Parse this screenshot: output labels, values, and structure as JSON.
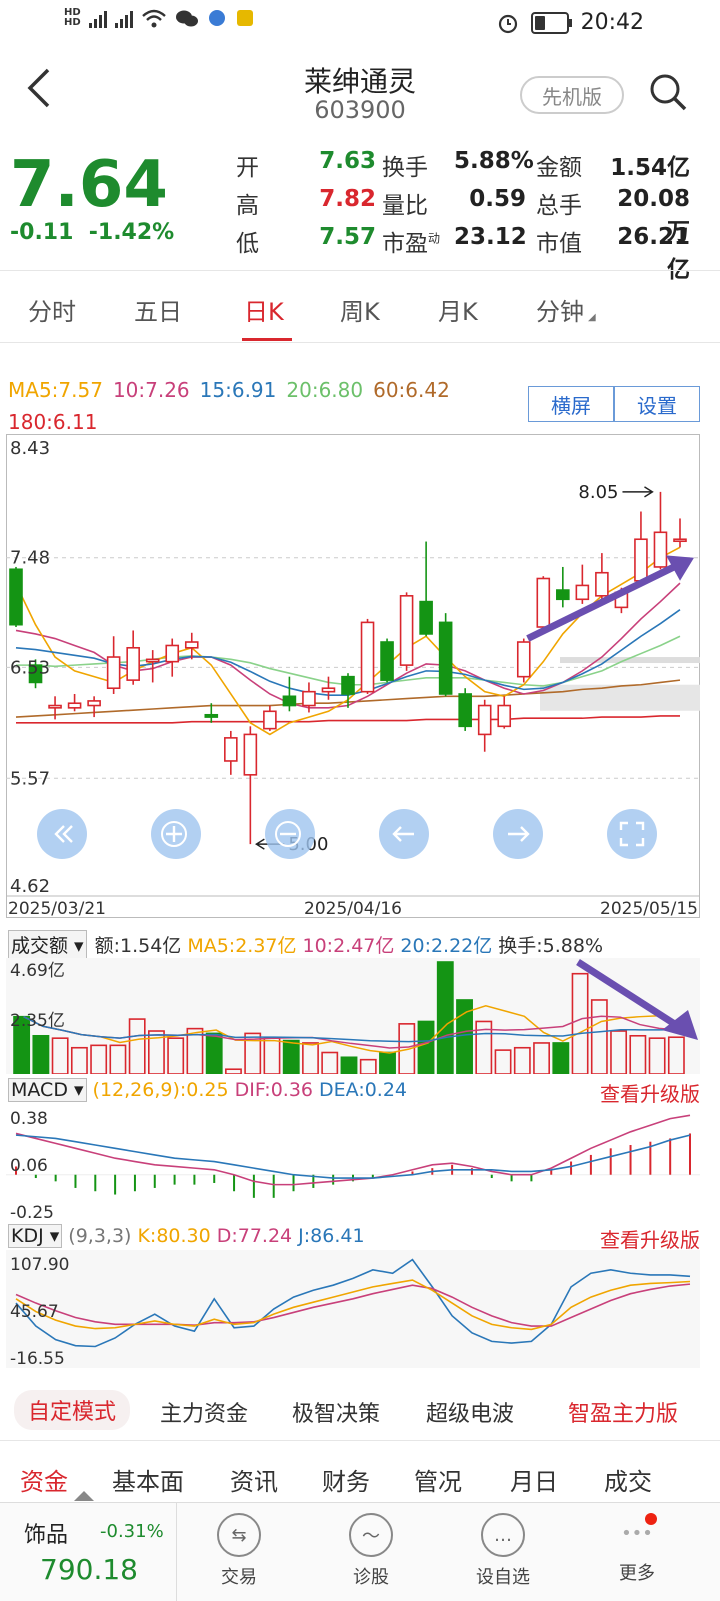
{
  "status": {
    "left_icons": [
      "hd-icon",
      "5g-signal-icon",
      "4g-signal-icon",
      "wifi-icon",
      "wechat-icon",
      "app-icon",
      "wallet-icon"
    ],
    "time": "20:42"
  },
  "header": {
    "stock_name": "莱绅通灵",
    "stock_code": "603900",
    "mode_button": "先机版"
  },
  "quote": {
    "price": "7.64",
    "change": "-0.11",
    "change_pct": "-1.42%",
    "rows": [
      [
        {
          "label": "开",
          "value": "7.63",
          "color": "green"
        },
        {
          "label": "换手",
          "value": "5.88%",
          "color": "dark"
        },
        {
          "label": "金额",
          "value": "1.54亿",
          "color": "dark"
        }
      ],
      [
        {
          "label": "高",
          "value": "7.82",
          "color": "red"
        },
        {
          "label": "量比",
          "value": "0.59",
          "color": "dark"
        },
        {
          "label": "总手",
          "value": "20.08万",
          "color": "dark"
        }
      ],
      [
        {
          "label": "低",
          "value": "7.57",
          "color": "green"
        },
        {
          "label": "市盈动",
          "value": "23.12",
          "color": "dark"
        },
        {
          "label": "市值",
          "value": "26.21亿",
          "color": "dark"
        }
      ]
    ]
  },
  "tabs": [
    "分时",
    "五日",
    "日K",
    "周K",
    "月K",
    "分钟"
  ],
  "active_tab": 2,
  "kline": {
    "ma_legend": [
      {
        "text": "MA5:7.57",
        "color": "#f0a500"
      },
      {
        "text": "10:7.26",
        "color": "#c8407a"
      },
      {
        "text": "15:6.91",
        "color": "#2a77b8"
      },
      {
        "text": "20:6.80",
        "color": "#6cc06a"
      },
      {
        "text": "60:6.42",
        "color": "#b06a2a"
      },
      {
        "text": "180:6.11",
        "color": "#d9272e"
      }
    ],
    "btn_landscape": "横屏",
    "btn_settings": "设置",
    "y_labels": [
      "8.43",
      "7.48",
      "6.53",
      "5.57",
      "4.62"
    ],
    "x_labels": [
      "2025/03/21",
      "2025/04/16",
      "2025/05/15"
    ],
    "high_marker": "8.05",
    "low_marker": "5.00",
    "colors": {
      "up": "#d9272e",
      "down": "#149414"
    }
  },
  "chart_data": {
    "type": "candlestick",
    "ylim": [
      4.62,
      8.43
    ],
    "x_range": [
      "2025/03/21",
      "2025/05/15"
    ],
    "candles": [
      {
        "o": 7.38,
        "c": 6.9,
        "h": 7.4,
        "l": 6.88
      },
      {
        "o": 6.55,
        "c": 6.4,
        "h": 6.6,
        "l": 6.35
      },
      {
        "o": 6.18,
        "c": 6.2,
        "h": 6.28,
        "l": 6.08
      },
      {
        "o": 6.18,
        "c": 6.22,
        "h": 6.3,
        "l": 6.15
      },
      {
        "o": 6.2,
        "c": 6.24,
        "h": 6.28,
        "l": 6.1
      },
      {
        "o": 6.35,
        "c": 6.62,
        "h": 6.8,
        "l": 6.3
      },
      {
        "o": 6.42,
        "c": 6.7,
        "h": 6.85,
        "l": 6.38
      },
      {
        "o": 6.58,
        "c": 6.6,
        "h": 6.68,
        "l": 6.4
      },
      {
        "o": 6.58,
        "c": 6.72,
        "h": 6.78,
        "l": 6.45
      },
      {
        "o": 6.7,
        "c": 6.75,
        "h": 6.83,
        "l": 6.6
      },
      {
        "o": 6.12,
        "c": 6.1,
        "h": 6.22,
        "l": 6.05
      },
      {
        "o": 5.72,
        "c": 5.92,
        "h": 5.98,
        "l": 5.6
      },
      {
        "o": 5.6,
        "c": 5.95,
        "h": 6.02,
        "l": 5.0
      },
      {
        "o": 6.0,
        "c": 6.15,
        "h": 6.2,
        "l": 5.98
      },
      {
        "o": 6.28,
        "c": 6.2,
        "h": 6.45,
        "l": 6.15
      },
      {
        "o": 6.2,
        "c": 6.32,
        "h": 6.4,
        "l": 6.14
      },
      {
        "o": 6.32,
        "c": 6.35,
        "h": 6.45,
        "l": 6.25
      },
      {
        "o": 6.45,
        "c": 6.3,
        "h": 6.48,
        "l": 6.18
      },
      {
        "o": 6.32,
        "c": 6.92,
        "h": 6.95,
        "l": 6.3
      },
      {
        "o": 6.75,
        "c": 6.42,
        "h": 6.78,
        "l": 6.4
      },
      {
        "o": 6.55,
        "c": 7.15,
        "h": 7.18,
        "l": 6.5
      },
      {
        "o": 7.1,
        "c": 6.82,
        "h": 7.62,
        "l": 6.8
      },
      {
        "o": 6.92,
        "c": 6.3,
        "h": 7.0,
        "l": 6.28
      },
      {
        "o": 6.3,
        "c": 6.02,
        "h": 6.35,
        "l": 5.98
      },
      {
        "o": 5.95,
        "c": 6.2,
        "h": 6.25,
        "l": 5.8
      },
      {
        "o": 6.02,
        "c": 6.2,
        "h": 6.28,
        "l": 6.0
      },
      {
        "o": 6.45,
        "c": 6.75,
        "h": 6.78,
        "l": 6.4
      },
      {
        "o": 6.88,
        "c": 7.3,
        "h": 7.32,
        "l": 6.85
      },
      {
        "o": 7.2,
        "c": 7.12,
        "h": 7.4,
        "l": 7.05
      },
      {
        "o": 7.12,
        "c": 7.24,
        "h": 7.42,
        "l": 7.08
      },
      {
        "o": 7.15,
        "c": 7.35,
        "h": 7.52,
        "l": 7.1
      },
      {
        "o": 7.05,
        "c": 7.18,
        "h": 7.22,
        "l": 7.0
      },
      {
        "o": 7.28,
        "c": 7.64,
        "h": 7.88,
        "l": 7.25
      },
      {
        "o": 7.4,
        "c": 7.7,
        "h": 8.05,
        "l": 7.38
      },
      {
        "o": 7.63,
        "c": 7.64,
        "h": 7.82,
        "l": 7.57
      }
    ],
    "ma5": [
      7.25,
      6.9,
      6.62,
      6.5,
      6.45,
      6.4,
      6.5,
      6.58,
      6.65,
      6.7,
      6.55,
      6.3,
      6.05,
      5.95,
      6.05,
      6.1,
      6.15,
      6.25,
      6.4,
      6.55,
      6.7,
      6.8,
      6.62,
      6.45,
      6.32,
      6.28,
      6.38,
      6.58,
      6.82,
      7.0,
      7.15,
      7.25,
      7.35,
      7.48,
      7.57
    ],
    "ma10": [
      6.85,
      6.82,
      6.78,
      6.72,
      6.66,
      6.55,
      6.5,
      6.52,
      6.58,
      6.62,
      6.62,
      6.55,
      6.42,
      6.3,
      6.22,
      6.18,
      6.18,
      6.2,
      6.28,
      6.38,
      6.48,
      6.56,
      6.55,
      6.5,
      6.42,
      6.35,
      6.3,
      6.33,
      6.4,
      6.5,
      6.62,
      6.78,
      6.95,
      7.1,
      7.26
    ],
    "ma20": [
      6.55,
      6.55,
      6.54,
      6.55,
      6.56,
      6.57,
      6.58,
      6.6,
      6.62,
      6.63,
      6.62,
      6.6,
      6.57,
      6.52,
      6.48,
      6.44,
      6.4,
      6.38,
      6.38,
      6.4,
      6.42,
      6.44,
      6.44,
      6.44,
      6.42,
      6.4,
      6.38,
      6.37,
      6.4,
      6.45,
      6.5,
      6.58,
      6.65,
      6.72,
      6.8
    ],
    "ma60": [
      6.1,
      6.11,
      6.12,
      6.13,
      6.14,
      6.15,
      6.16,
      6.17,
      6.18,
      6.19,
      6.2,
      6.2,
      6.2,
      6.2,
      6.21,
      6.22,
      6.22,
      6.23,
      6.24,
      6.25,
      6.26,
      6.27,
      6.28,
      6.28,
      6.28,
      6.29,
      6.3,
      6.31,
      6.32,
      6.34,
      6.35,
      6.37,
      6.38,
      6.4,
      6.42
    ],
    "ma180": [
      6.05,
      6.05,
      6.05,
      6.05,
      6.05,
      6.05,
      6.05,
      6.05,
      6.05,
      6.06,
      6.06,
      6.06,
      6.06,
      6.06,
      6.06,
      6.06,
      6.07,
      6.07,
      6.07,
      6.07,
      6.07,
      6.08,
      6.08,
      6.08,
      6.08,
      6.08,
      6.09,
      6.09,
      6.09,
      6.09,
      6.1,
      6.1,
      6.1,
      6.11,
      6.11
    ]
  },
  "volume": {
    "selector": "成交额",
    "legend": [
      {
        "text": "额:1.54亿",
        "color": "#333"
      },
      {
        "text": "MA5:2.37亿",
        "color": "#f0a500"
      },
      {
        "text": "10:2.47亿",
        "color": "#c8407a"
      },
      {
        "text": "20:2.22亿",
        "color": "#2a77b8"
      },
      {
        "text": "换手:5.88%",
        "color": "#333"
      }
    ],
    "y_labels": [
      "4.69亿",
      "2.35亿"
    ],
    "ylim": [
      0,
      4.69
    ],
    "values": [
      2.4,
      1.6,
      1.5,
      1.1,
      1.2,
      1.2,
      2.3,
      1.8,
      1.5,
      1.9,
      1.7,
      0.2,
      1.7,
      1.5,
      1.4,
      1.3,
      0.9,
      0.7,
      0.6,
      0.9,
      2.1,
      2.2,
      4.69,
      3.1,
      2.2,
      1.0,
      1.1,
      1.3,
      1.3,
      4.2,
      3.1,
      1.8,
      1.6,
      1.5,
      1.54
    ]
  },
  "macd": {
    "selector": "MACD",
    "legend": [
      {
        "text": "(12,26,9):0.25",
        "color": "#f0a500"
      },
      {
        "text": "DIF:0.36",
        "color": "#c8407a"
      },
      {
        "text": "DEA:0.24",
        "color": "#2a77b8"
      }
    ],
    "upgrade": "查看升级版",
    "y_labels": [
      "0.38",
      "0.06",
      "-0.25"
    ],
    "ylim": [
      -0.25,
      0.38
    ],
    "hist": [
      0.05,
      -0.02,
      -0.04,
      -0.08,
      -0.1,
      -0.12,
      -0.1,
      -0.08,
      -0.06,
      -0.06,
      -0.05,
      -0.1,
      -0.14,
      -0.14,
      -0.1,
      -0.08,
      -0.06,
      -0.04,
      -0.02,
      0.0,
      0.02,
      0.04,
      0.06,
      0.04,
      -0.02,
      -0.04,
      -0.04,
      0.03,
      0.08,
      0.12,
      0.16,
      0.18,
      0.2,
      0.22,
      0.25
    ],
    "dif": [
      0.25,
      0.22,
      0.19,
      0.16,
      0.13,
      0.1,
      0.08,
      0.06,
      0.05,
      0.04,
      0.03,
      0.0,
      -0.04,
      -0.06,
      -0.06,
      -0.05,
      -0.04,
      -0.03,
      -0.02,
      0.0,
      0.03,
      0.06,
      0.07,
      0.05,
      0.02,
      0.0,
      0.0,
      0.04,
      0.1,
      0.16,
      0.21,
      0.26,
      0.3,
      0.34,
      0.36
    ],
    "dea": [
      0.24,
      0.23,
      0.22,
      0.2,
      0.18,
      0.16,
      0.14,
      0.12,
      0.1,
      0.09,
      0.08,
      0.06,
      0.04,
      0.02,
      0.0,
      -0.01,
      -0.02,
      -0.02,
      -0.02,
      -0.01,
      0.0,
      0.02,
      0.03,
      0.03,
      0.03,
      0.02,
      0.02,
      0.03,
      0.05,
      0.08,
      0.11,
      0.14,
      0.17,
      0.21,
      0.24
    ]
  },
  "kdj": {
    "selector": "KDJ",
    "legend": [
      {
        "text": "(9,3,3)",
        "color": "#777"
      },
      {
        "text": "K:80.30",
        "color": "#f0a500"
      },
      {
        "text": "D:77.24",
        "color": "#c8407a"
      },
      {
        "text": "J:86.41",
        "color": "#2a77b8"
      }
    ],
    "upgrade": "查看升级版",
    "y_labels": [
      "107.90",
      "45.67",
      "-16.55"
    ],
    "ylim": [
      -16.55,
      107.9
    ],
    "k": [
      60,
      45,
      35,
      28,
      25,
      26,
      30,
      34,
      30,
      28,
      36,
      30,
      32,
      42,
      50,
      56,
      62,
      68,
      74,
      78,
      82,
      70,
      55,
      40,
      30,
      26,
      24,
      30,
      50,
      62,
      70,
      76,
      78,
      79,
      80.3
    ],
    "d": [
      65,
      55,
      46,
      38,
      33,
      30,
      30,
      30,
      30,
      29,
      32,
      32,
      33,
      38,
      44,
      50,
      55,
      60,
      66,
      71,
      76,
      72,
      62,
      50,
      40,
      32,
      28,
      28,
      38,
      48,
      58,
      66,
      71,
      75,
      77.24
    ],
    "j": [
      55,
      28,
      12,
      5,
      4,
      14,
      30,
      42,
      28,
      22,
      60,
      26,
      28,
      48,
      62,
      70,
      76,
      84,
      94,
      90,
      106,
      74,
      40,
      20,
      10,
      8,
      10,
      30,
      74,
      90,
      94,
      90,
      88,
      88,
      86.41
    ]
  },
  "bottom_tabs": [
    "自定模式",
    "主力资金",
    "极智决策",
    "超级电波",
    "智盈主力版"
  ],
  "peek_tabs": [
    "资金",
    "基本面",
    "资讯",
    "财务",
    "管况",
    "月日",
    "成交"
  ],
  "nav": {
    "index_name": "饰品",
    "index_change": "-0.31%",
    "index_value": "790.18",
    "items": [
      {
        "label": "交易",
        "icon": "trade-icon"
      },
      {
        "label": "诊股",
        "icon": "diagnose-icon"
      },
      {
        "label": "设自选",
        "icon": "favorite-icon"
      },
      {
        "label": "更多",
        "icon": "more-icon"
      }
    ]
  }
}
